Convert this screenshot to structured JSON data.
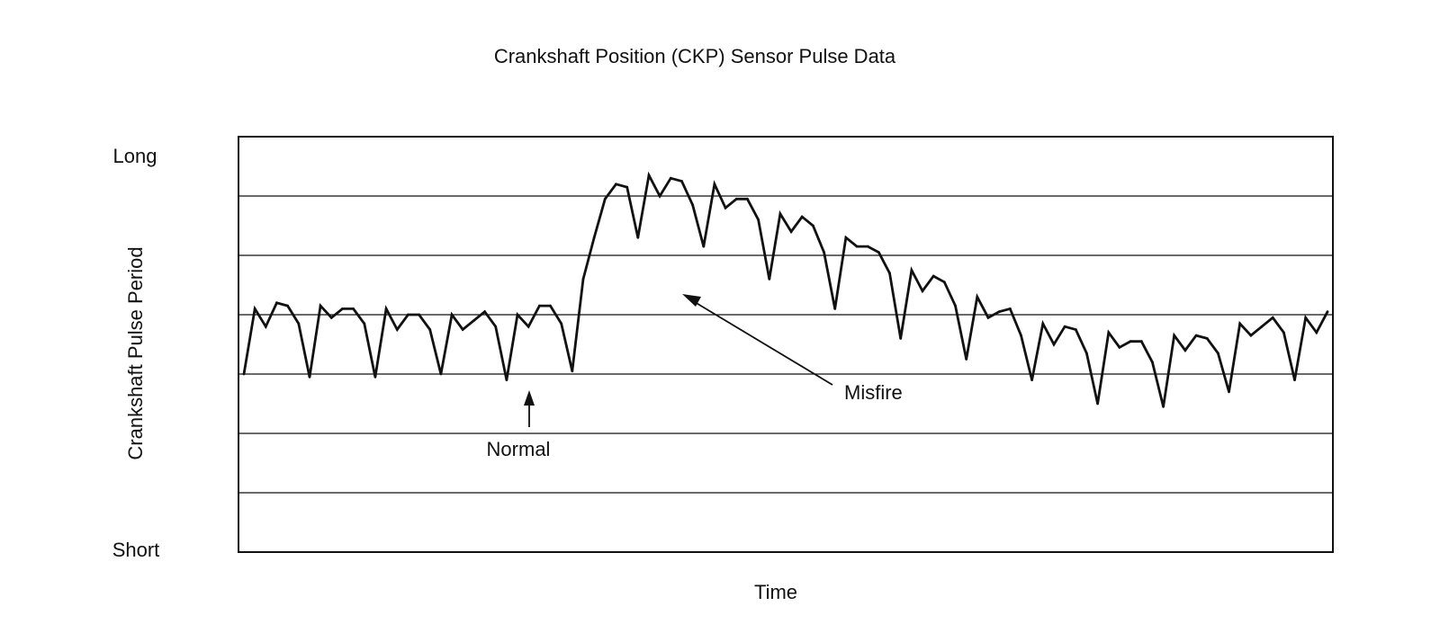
{
  "chart_data": {
    "type": "line",
    "title": "Crankshaft Position (CKP) Sensor Pulse Data",
    "xlabel": "Time",
    "ylabel": "Crankshaft Pulse Period",
    "y_tick_labels": {
      "top": "Long",
      "bottom": "Short"
    },
    "ylim": [
      0,
      7
    ],
    "y_gridlines": [
      1,
      2,
      3,
      4,
      5,
      6
    ],
    "grid": "horizontal",
    "legend": "none",
    "series": [
      {
        "values": [
          3.0,
          4.1,
          3.8,
          4.2,
          4.15,
          3.85,
          2.95,
          4.15,
          3.95,
          4.1,
          4.1,
          3.85,
          2.95,
          4.1,
          3.75,
          4.0,
          4.0,
          3.75,
          3.0,
          4.0,
          3.75,
          3.9,
          4.05,
          3.8,
          2.9,
          4.0,
          3.8,
          4.15,
          4.15,
          3.85,
          3.05,
          4.6,
          5.3,
          5.95,
          6.2,
          6.15,
          5.3,
          6.35,
          6.0,
          6.3,
          6.25,
          5.85,
          5.15,
          6.2,
          5.8,
          5.95,
          5.95,
          5.6,
          4.6,
          5.7,
          5.4,
          5.65,
          5.5,
          5.05,
          4.1,
          5.3,
          5.15,
          5.15,
          5.05,
          4.7,
          3.6,
          4.75,
          4.4,
          4.65,
          4.55,
          4.15,
          3.25,
          4.3,
          3.95,
          4.05,
          4.1,
          3.65,
          2.9,
          3.85,
          3.5,
          3.8,
          3.75,
          3.35,
          2.5,
          3.7,
          3.45,
          3.55,
          3.55,
          3.2,
          2.45,
          3.65,
          3.4,
          3.65,
          3.6,
          3.35,
          2.7,
          3.85,
          3.65,
          3.8,
          3.95,
          3.7,
          2.9,
          3.95,
          3.7,
          4.05
        ]
      }
    ],
    "annotations": [
      {
        "text": "Normal",
        "points_to_index": 25
      },
      {
        "text": "Misfire",
        "points_to_index": 40
      }
    ]
  }
}
